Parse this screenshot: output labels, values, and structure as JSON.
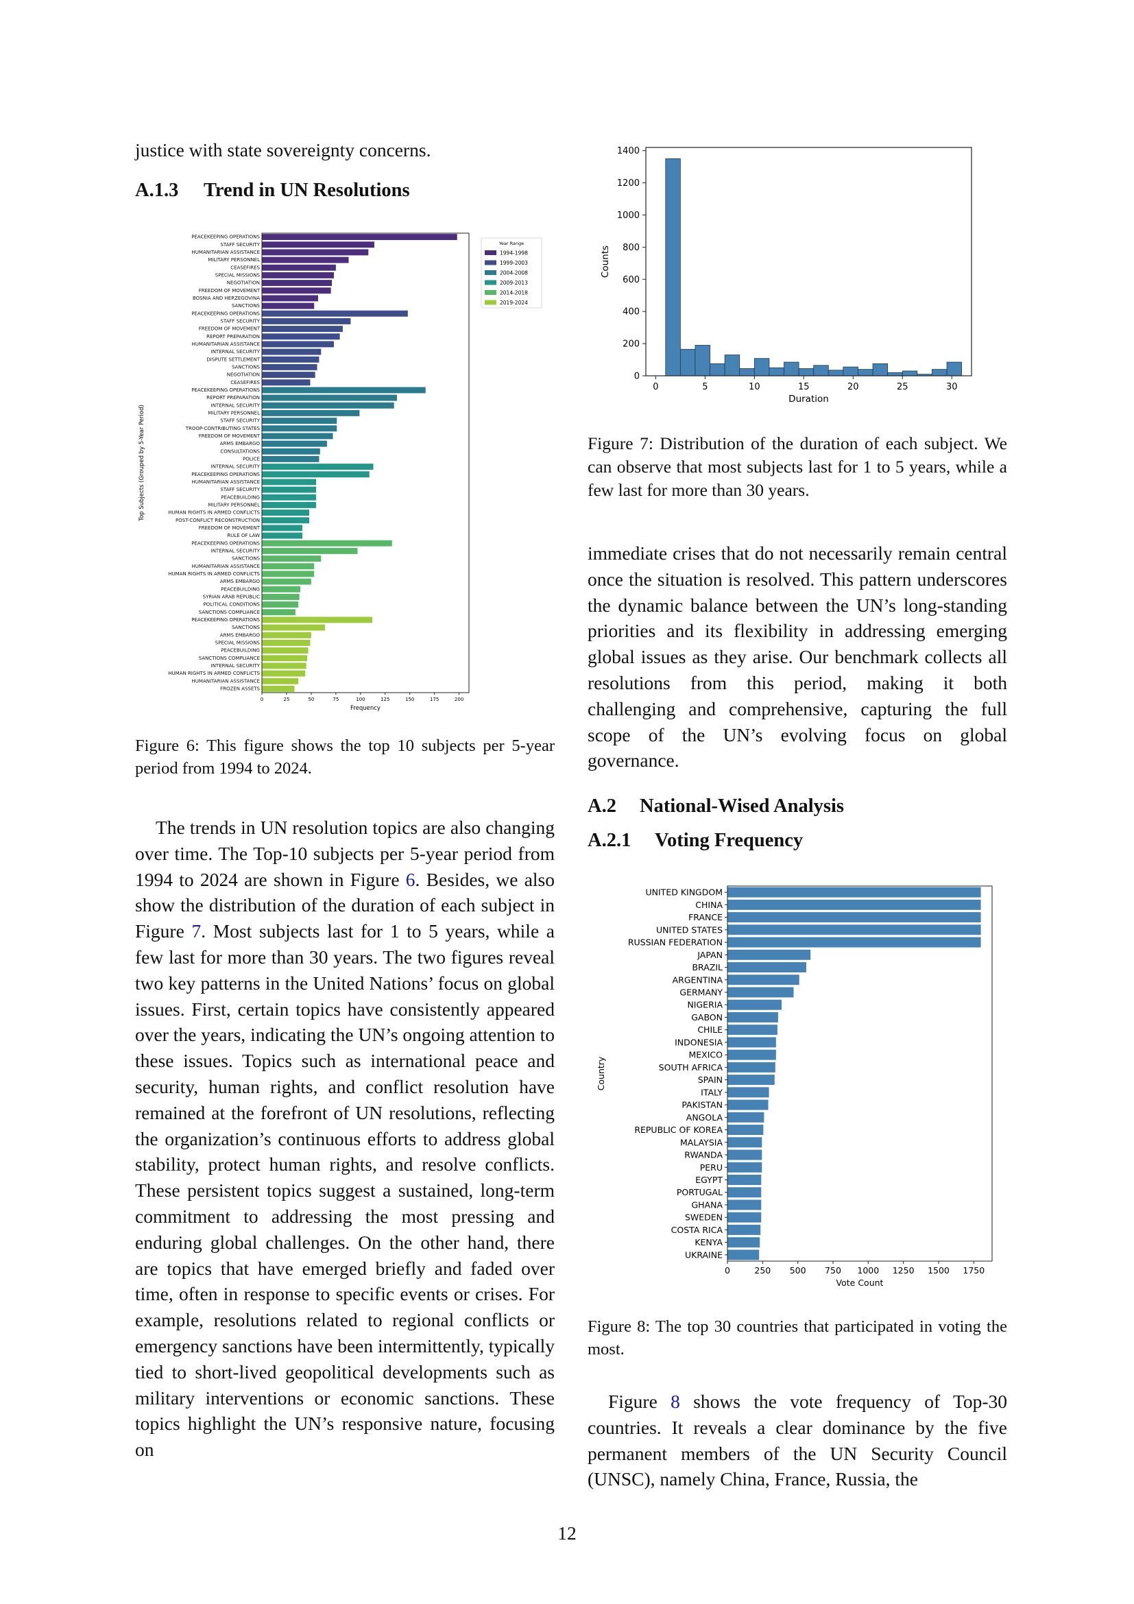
{
  "left": {
    "intro_line": "justice with state sovereignty concerns.",
    "section": {
      "number": "A.1.3",
      "title": "Trend in UN Resolutions"
    },
    "figure6_caption": "Figure 6: This figure shows the top 10 subjects per 5-year period from 1994 to 2024.",
    "paragraph_before_ref6": "The trends in UN resolution topics are also changing over time. The Top-10 subjects per 5-year period from 1994 to 2024 are shown in Figure ",
    "ref6": "6",
    "paragraph_mid": ". Besides, we also show the distribution of the duration of each subject in Figure ",
    "ref7": "7",
    "paragraph_after": ". Most subjects last for 1 to 5 years, while a few last for more than 30 years. The two figures reveal two key patterns in the United Nations’ focus on global issues. First, certain topics have consistently appeared over the years, indicating the UN’s ongoing attention to these issues. Topics such as international peace and security, human rights, and conflict resolution have remained at the forefront of UN resolutions, reflecting the organization’s continuous efforts to address global stability, protect human rights, and resolve conflicts. These persistent topics suggest a sustained, long-term commitment to addressing the most pressing and enduring global challenges. On the other hand, there are topics that have emerged briefly and faded over time, often in response to specific events or crises. For example, resolutions related to regional conflicts or emergency sanctions have been intermittently, typically tied to short-lived geopolitical developments such as military interventions or economic sanctions. These topics highlight the UN’s responsive nature, focusing on"
  },
  "right": {
    "figure7_caption": "Figure 7: Distribution of the duration of each subject. We can observe that most subjects last for 1 to 5 years, while a few last for more than 30 years.",
    "paragraph1": "immediate crises that do not necessarily remain central once the situation is resolved. This pattern underscores the dynamic balance between the UN’s long-standing priorities and its flexibility in addressing emerging global issues as they arise. Our benchmark collects all resolutions from this period, making it both challenging and comprehensive, capturing the full scope of the UN’s evolving focus on global governance.",
    "section_a2": {
      "number": "A.2",
      "title": "National-Wised Analysis"
    },
    "section_a21": {
      "number": "A.2.1",
      "title": "Voting Frequency"
    },
    "figure8_caption": "Figure 8: The top 30 countries that participated in voting the most.",
    "paragraph2_pre": "Figure ",
    "ref8": "8",
    "paragraph2_post": " shows the vote frequency of Top-30 countries. It reveals a clear dominance by the five permanent members of the UN Security Council (UNSC), namely China, France, Russia, the"
  },
  "page_number": "12",
  "chart_data": [
    {
      "id": "figure6",
      "type": "bar",
      "orientation": "horizontal",
      "xlabel": "Frequency",
      "ylabel": "Top Subjects (Grouped by 5-Year Period)",
      "xlim": [
        0,
        210
      ],
      "xticks": [
        0,
        25,
        50,
        75,
        100,
        125,
        150,
        175,
        200
      ],
      "legend": {
        "title": "Year Range",
        "position": "top-right"
      },
      "colors": {
        "1994-1998": "#4b2f7d",
        "1999-2003": "#3e4e8a",
        "2004-2008": "#2b7b8e",
        "2009-2013": "#23978a",
        "2014-2018": "#58b867",
        "2019-2024": "#9dcb3c"
      },
      "series": [
        {
          "name": "1994-1998",
          "categories": [
            "PEACEKEEPING OPERATIONS",
            "STAFF SECURITY",
            "HUMANITARIAN ASSISTANCE",
            "MILITARY PERSONNEL",
            "CEASEFIRES",
            "SPECIAL MISSIONS",
            "NEGOTIATION",
            "FREEDOM OF MOVEMENT",
            "BOSNIA AND HERZEGOVINA",
            "SANCTIONS"
          ],
          "values": [
            198,
            114,
            108,
            88,
            75,
            73,
            71,
            70,
            57,
            53
          ]
        },
        {
          "name": "1999-2003",
          "categories": [
            "PEACEKEEPING OPERATIONS",
            "STAFF SECURITY",
            "FREEDOM OF MOVEMENT",
            "REPORT PREPARATION",
            "HUMANITARIAN ASSISTANCE",
            "INTERNAL SECURITY",
            "DISPUTE SETTLEMENT",
            "SANCTIONS",
            "NEGOTIATION",
            "CEASEFIRES"
          ],
          "values": [
            148,
            90,
            82,
            79,
            73,
            60,
            58,
            56,
            54,
            49
          ]
        },
        {
          "name": "2004-2008",
          "categories": [
            "PEACEKEEPING OPERATIONS",
            "REPORT PREPARATION",
            "INTERNAL SECURITY",
            "MILITARY PERSONNEL",
            "STAFF SECURITY",
            "TROOP-CONTRIBUTING STATES",
            "FREEDOM OF MOVEMENT",
            "ARMS EMBARGO",
            "CONSULTATIONS",
            "POLICE"
          ],
          "values": [
            166,
            137,
            134,
            99,
            76,
            76,
            72,
            66,
            59,
            58
          ]
        },
        {
          "name": "2009-2013",
          "categories": [
            "INTERNAL SECURITY",
            "PEACEKEEPING OPERATIONS",
            "HUMANITARIAN ASSISTANCE",
            "STAFF SECURITY",
            "PEACEBUILDING",
            "MILITARY PERSONNEL",
            "HUMAN RIGHTS IN ARMED CONFLICTS",
            "POST-CONFLICT RECONSTRUCTION",
            "FREEDOM OF MOVEMENT",
            "RULE OF LAW"
          ],
          "values": [
            113,
            109,
            55,
            55,
            55,
            55,
            48,
            48,
            41,
            41
          ]
        },
        {
          "name": "2014-2018",
          "categories": [
            "PEACEKEEPING OPERATIONS",
            "INTERNAL SECURITY",
            "SANCTIONS",
            "HUMANITARIAN ASSISTANCE",
            "HUMAN RIGHTS IN ARMED CONFLICTS",
            "ARMS EMBARGO",
            "PEACEBUILDING",
            "SYRIAN ARAB REPUBLIC",
            "POLITICAL CONDITIONS",
            "SANCTIONS COMPLIANCE"
          ],
          "values": [
            132,
            97,
            60,
            53,
            53,
            50,
            39,
            38,
            37,
            34
          ]
        },
        {
          "name": "2019-2024",
          "categories": [
            "PEACEKEEPING OPERATIONS",
            "SANCTIONS",
            "ARMS EMBARGO",
            "SPECIAL MISSIONS",
            "PEACEBUILDING",
            "SANCTIONS COMPLIANCE",
            "INTERNAL SECURITY",
            "HUMAN RIGHTS IN ARMED CONFLICTS",
            "HUMANITARIAN ASSISTANCE",
            "FROZEN ASSETS"
          ],
          "values": [
            112,
            64,
            50,
            49,
            47,
            46,
            45,
            44,
            37,
            33
          ]
        }
      ]
    },
    {
      "id": "figure7",
      "type": "bar",
      "subtype": "histogram",
      "xlabel": "Duration",
      "ylabel": "Counts",
      "xlim": [
        -1,
        32
      ],
      "ylim": [
        0,
        1420
      ],
      "xticks": [
        0,
        5,
        10,
        15,
        20,
        25,
        30
      ],
      "yticks": [
        0,
        200,
        400,
        600,
        800,
        1000,
        1200,
        1400
      ],
      "color": "#4682b4",
      "bins": [
        [
          1,
          2.5,
          1350
        ],
        [
          2.5,
          4,
          165
        ],
        [
          4,
          5.5,
          190
        ],
        [
          5.5,
          7,
          75
        ],
        [
          7,
          8.5,
          130
        ],
        [
          8.5,
          10,
          45
        ],
        [
          10,
          11.5,
          108
        ],
        [
          11.5,
          13,
          50
        ],
        [
          13,
          14.5,
          85
        ],
        [
          14.5,
          16,
          45
        ],
        [
          16,
          17.5,
          65
        ],
        [
          17.5,
          19,
          35
        ],
        [
          19,
          20.5,
          55
        ],
        [
          20.5,
          22,
          40
        ],
        [
          22,
          23.5,
          75
        ],
        [
          23.5,
          25,
          20
        ],
        [
          25,
          26.5,
          30
        ],
        [
          26.5,
          28,
          10
        ],
        [
          28,
          29.5,
          40
        ],
        [
          29.5,
          31,
          85
        ]
      ]
    },
    {
      "id": "figure8",
      "type": "bar",
      "orientation": "horizontal",
      "xlabel": "Vote Count",
      "ylabel": "Country",
      "xlim": [
        0,
        1880
      ],
      "xticks": [
        0,
        250,
        500,
        750,
        1000,
        1250,
        1500,
        1750
      ],
      "color": "#4682b4",
      "categories": [
        "UNITED KINGDOM",
        "CHINA",
        "FRANCE",
        "UNITED STATES",
        "RUSSIAN FEDERATION",
        "JAPAN",
        "BRAZIL",
        "ARGENTINA",
        "GERMANY",
        "NIGERIA",
        "GABON",
        "CHILE",
        "INDONESIA",
        "MEXICO",
        "SOUTH AFRICA",
        "SPAIN",
        "ITALY",
        "PAKISTAN",
        "ANGOLA",
        "REPUBLIC OF KOREA",
        "MALAYSIA",
        "RWANDA",
        "PERU",
        "EGYPT",
        "PORTUGAL",
        "GHANA",
        "SWEDEN",
        "COSTA RICA",
        "KENYA",
        "UKRAINE"
      ],
      "values": [
        1800,
        1800,
        1800,
        1800,
        1800,
        590,
        560,
        510,
        470,
        385,
        360,
        355,
        345,
        345,
        340,
        335,
        295,
        290,
        260,
        255,
        245,
        245,
        245,
        240,
        240,
        240,
        240,
        235,
        230,
        225
      ]
    }
  ]
}
